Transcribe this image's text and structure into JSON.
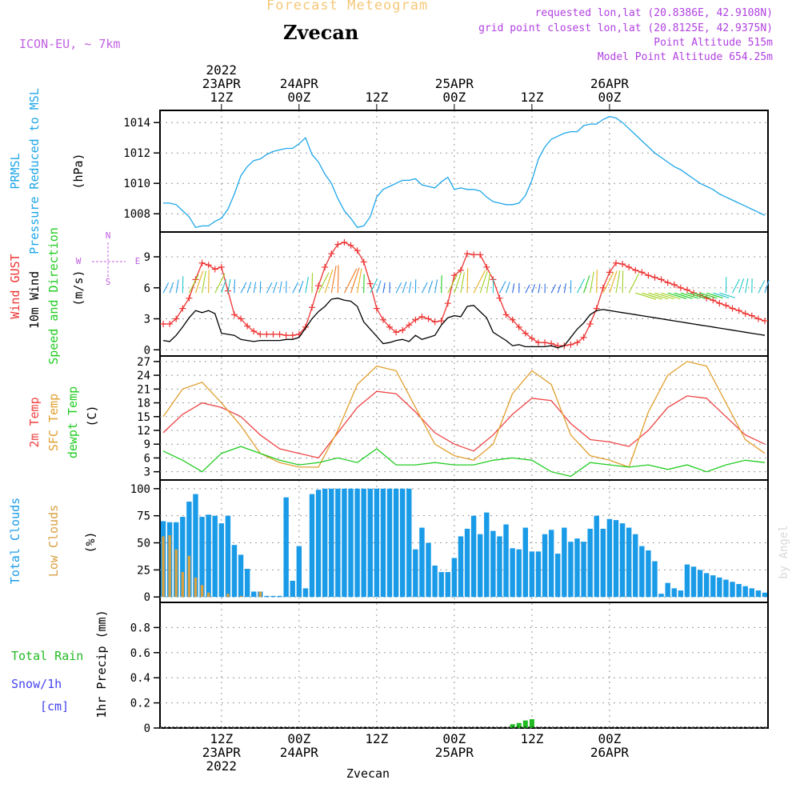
{
  "header": {
    "title": "Forecast Meteogram",
    "location": "Zvecan",
    "model": "ICON-EU, ~ 7km",
    "requested": "requested lon,lat (20.8386E, 42.9108N)",
    "gridpoint": "grid point closest lon,lat (20.8125E, 42.9375N)",
    "point_alt": "Point Altitude 515m",
    "model_alt": "Model Point Altitude 654.25m",
    "credit": "by Angel",
    "footer": "Zvecan"
  },
  "time_axis": {
    "top": [
      {
        "lines": [
          "2022",
          "23APR",
          "12Z"
        ],
        "hour": 12
      },
      {
        "lines": [
          "24APR",
          "00Z"
        ],
        "hour": 24
      },
      {
        "lines": [
          "12Z"
        ],
        "hour": 36
      },
      {
        "lines": [
          "25APR",
          "00Z"
        ],
        "hour": 48
      },
      {
        "lines": [
          "12Z"
        ],
        "hour": 60
      },
      {
        "lines": [
          "26APR",
          "00Z"
        ],
        "hour": 72
      }
    ],
    "bottom": [
      {
        "lines": [
          "12Z",
          "23APR",
          "2022"
        ],
        "hour": 12
      },
      {
        "lines": [
          "00Z",
          "24APR"
        ],
        "hour": 24
      },
      {
        "lines": [
          "12Z"
        ],
        "hour": 36
      },
      {
        "lines": [
          "00Z",
          "25APR"
        ],
        "hour": 48
      },
      {
        "lines": [
          "12Z"
        ],
        "hour": 60
      },
      {
        "lines": [
          "00Z",
          "26APR"
        ],
        "hour": 72
      }
    ]
  },
  "panel_labels": {
    "pressure": [
      "PRMSL",
      "Pressure Reduced to MSL",
      "(hPa)"
    ],
    "wind": [
      "Wind GUST",
      "10m Wind",
      "Speed and Direction",
      "(m/s)"
    ],
    "compass": {
      "n": "N",
      "s": "S",
      "w": "W",
      "e": "E"
    },
    "temp": [
      "2m Temp",
      "SFC Temp",
      "dewpt Temp",
      "(C)"
    ],
    "clouds": [
      "Total Clouds",
      "Low Clouds",
      "(%)"
    ],
    "precip": [
      "Total Rain",
      "Snow/1h",
      "[cm]",
      "1hr Precip (mm)"
    ]
  },
  "colors": {
    "pressure": "#1ea6e8",
    "gust": "#ee3333",
    "wind": "#000000",
    "temp2m": "#ee4444",
    "sfc": "#e0a030",
    "dew": "#22cc22",
    "total_cloud": "#1a9be8",
    "low_cloud": "#d8a040",
    "rain": "#22bb22",
    "snow": "#4444ee",
    "title": "#f5c878",
    "meta": "#b040e0"
  },
  "chart_data": [
    {
      "type": "line",
      "name": "pressure",
      "ylim": [
        1006.8,
        1014.8
      ],
      "yticks": [
        1008,
        1010,
        1012,
        1014
      ],
      "x": [
        3,
        4,
        5,
        6,
        7,
        8,
        9,
        10,
        11,
        12,
        13,
        14,
        15,
        16,
        17,
        18,
        19,
        20,
        21,
        22,
        23,
        24,
        25,
        26,
        27,
        28,
        29,
        30,
        31,
        32,
        33,
        34,
        35,
        36,
        37,
        38,
        39,
        40,
        41,
        42,
        43,
        44,
        45,
        46,
        47,
        48,
        49,
        50,
        51,
        52,
        53,
        54,
        55,
        56,
        57,
        58,
        59,
        60,
        61,
        62,
        63,
        64,
        65,
        66,
        67,
        68,
        69,
        70,
        71,
        72,
        73,
        74,
        75,
        76,
        77,
        78,
        79,
        80,
        81,
        82,
        83,
        84,
        85,
        86,
        87,
        88,
        89,
        90,
        91,
        92,
        93,
        94,
        95,
        96
      ],
      "series": [
        {
          "name": "PRMSL",
          "values": [
            1008.7,
            1008.7,
            1008.6,
            1008.2,
            1007.8,
            1007.1,
            1007.2,
            1007.2,
            1007.5,
            1007.7,
            1008.3,
            1009.3,
            1010.5,
            1011.1,
            1011.5,
            1011.6,
            1011.9,
            1012.1,
            1012.2,
            1012.3,
            1012.3,
            1012.6,
            1013.0,
            1011.9,
            1011.4,
            1010.6,
            1010.0,
            1009.0,
            1008.2,
            1007.7,
            1007.1,
            1007.2,
            1007.8,
            1009.1,
            1009.6,
            1009.8,
            1010.0,
            1010.2,
            1010.2,
            1010.3,
            1009.9,
            1009.8,
            1009.7,
            1010.1,
            1010.4,
            1009.6,
            1009.7,
            1009.6,
            1009.6,
            1009.5,
            1009.1,
            1008.8,
            1008.7,
            1008.6,
            1008.6,
            1008.7,
            1009.2,
            1010.2,
            1011.6,
            1012.4,
            1012.9,
            1013.1,
            1013.3,
            1013.4,
            1013.4,
            1013.8,
            1013.9,
            1013.9,
            1014.2,
            1014.4,
            1014.3,
            1014.0,
            1013.6,
            1013.2,
            1012.8,
            1012.4,
            1012.0,
            1011.7,
            1011.4,
            1011.1,
            1010.9,
            1010.6,
            1010.3,
            1010.0,
            1009.8,
            1009.6,
            1009.3,
            1009.1,
            1008.9,
            1008.7,
            1008.5,
            1008.3,
            1008.1,
            1007.9
          ]
        }
      ]
    },
    {
      "type": "line",
      "name": "wind",
      "ylim": [
        -0.6,
        11.4
      ],
      "yticks": [
        0,
        3,
        6,
        9
      ],
      "x": [
        3,
        4,
        5,
        6,
        7,
        8,
        9,
        10,
        11,
        12,
        13,
        14,
        15,
        16,
        17,
        18,
        19,
        20,
        21,
        22,
        23,
        24,
        25,
        26,
        27,
        28,
        29,
        30,
        31,
        32,
        33,
        34,
        35,
        36,
        37,
        38,
        39,
        40,
        41,
        42,
        43,
        44,
        45,
        46,
        47,
        48,
        49,
        50,
        51,
        52,
        53,
        54,
        55,
        56,
        57,
        58,
        59,
        60,
        61,
        62,
        63,
        64,
        65,
        66,
        67,
        68,
        69,
        70,
        71,
        72,
        73,
        74,
        75,
        76,
        77,
        78,
        79,
        80,
        81,
        82,
        83,
        84,
        85,
        86,
        87,
        88,
        89,
        90,
        91,
        92,
        93,
        94,
        95,
        96
      ],
      "series": [
        {
          "name": "Wind GUST",
          "values": [
            2.5,
            2.5,
            3.0,
            4.0,
            5.0,
            6.8,
            8.4,
            8.2,
            7.8,
            8.0,
            5.7,
            3.4,
            3.0,
            2.3,
            1.8,
            1.5,
            1.5,
            1.5,
            1.5,
            1.4,
            1.4,
            1.5,
            2.2,
            4.1,
            6.2,
            8.0,
            9.3,
            10.2,
            10.4,
            10.1,
            9.6,
            8.5,
            6.4,
            4.0,
            2.9,
            2.2,
            1.7,
            1.9,
            2.4,
            2.9,
            3.2,
            3.0,
            2.7,
            2.8,
            4.5,
            7.2,
            7.7,
            9.3,
            9.2,
            9.2,
            8.0,
            6.8,
            5.0,
            3.4,
            2.9,
            2.2,
            1.6,
            1.1,
            0.7,
            0.7,
            0.6,
            0.4,
            0.4,
            0.5,
            0.7,
            1.2,
            2.5,
            4.0,
            6.0,
            7.5,
            8.4,
            8.3,
            8.0,
            7.7,
            7.5,
            7.2,
            7.0,
            6.8,
            6.5,
            6.3,
            6.0,
            5.8,
            5.5,
            5.3,
            5.0,
            4.8,
            4.5,
            4.3,
            4.0,
            3.8,
            3.5,
            3.3,
            3.0,
            2.8
          ]
        },
        {
          "name": "10m Wind",
          "values": [
            0.9,
            0.8,
            1.4,
            2.2,
            3.1,
            3.8,
            3.6,
            3.8,
            3.5,
            1.6,
            1.5,
            1.4,
            1.0,
            0.9,
            0.8,
            0.9,
            0.9,
            0.9,
            0.9,
            1.0,
            1.0,
            1.2,
            2.1,
            3.0,
            3.7,
            4.2,
            4.9,
            5.0,
            4.8,
            4.7,
            4.2,
            2.7,
            2.0,
            1.3,
            0.6,
            0.7,
            0.9,
            1.0,
            0.8,
            1.4,
            1.0,
            1.2,
            1.4,
            2.4,
            3.1,
            3.3,
            3.2,
            4.2,
            4.3,
            3.7,
            3.1,
            1.7,
            1.3,
            0.9,
            0.4,
            0.5,
            0.3,
            0.3,
            0.3,
            0.3,
            0.4,
            0.2,
            0.4,
            1.2,
            2.0,
            2.6,
            3.4,
            3.8,
            3.9,
            3.8,
            3.7,
            3.6,
            3.5,
            3.4,
            3.3,
            3.2,
            3.1,
            3.0,
            2.9,
            2.8,
            2.7,
            2.6,
            2.5,
            2.4,
            2.3,
            2.2,
            2.1,
            2.0,
            1.9,
            1.8,
            1.7,
            1.6,
            1.5,
            1.4
          ]
        }
      ]
    },
    {
      "type": "line",
      "name": "temperature",
      "ylim": [
        1.2,
        28.2
      ],
      "yticks": [
        3,
        6,
        9,
        12,
        15,
        18,
        21,
        24,
        27
      ],
      "x": [
        3,
        6,
        9,
        12,
        15,
        18,
        21,
        24,
        27,
        30,
        33,
        36,
        39,
        42,
        45,
        48,
        51,
        54,
        57,
        60,
        63,
        66,
        69,
        72,
        75,
        78,
        81,
        84,
        87,
        90,
        93,
        96
      ],
      "series": [
        {
          "name": "2m Temp",
          "values": [
            11.5,
            15.5,
            18.0,
            17.0,
            15.0,
            11.0,
            8.0,
            7.0,
            6.0,
            11.5,
            17.0,
            20.5,
            20.0,
            16.0,
            11.5,
            9.0,
            7.5,
            11.0,
            15.5,
            19.0,
            18.5,
            13.5,
            10.0,
            9.5,
            8.5,
            12.0,
            17.0,
            19.5,
            19.0,
            15.0,
            11.0,
            9.0
          ]
        },
        {
          "name": "SFC Temp",
          "values": [
            15.0,
            21.0,
            22.5,
            18.0,
            13.0,
            7.0,
            5.0,
            4.0,
            4.0,
            12.0,
            22.0,
            26.0,
            25.0,
            17.0,
            9.0,
            6.5,
            5.5,
            9.0,
            20.0,
            25.0,
            22.0,
            11.0,
            6.5,
            5.5,
            4.0,
            16.0,
            24.0,
            27.0,
            26.0,
            18.0,
            10.0,
            7.0
          ]
        },
        {
          "name": "dewpt Temp",
          "values": [
            7.5,
            5.5,
            3.0,
            7.0,
            8.5,
            7.0,
            5.5,
            4.5,
            5.0,
            6.0,
            5.0,
            8.0,
            4.5,
            4.5,
            5.0,
            4.5,
            4.5,
            5.5,
            6.0,
            5.5,
            3.0,
            2.0,
            5.0,
            4.5,
            4.0,
            4.5,
            3.5,
            4.5,
            3.0,
            4.5,
            5.5,
            5.0
          ]
        }
      ]
    },
    {
      "type": "bar",
      "name": "clouds",
      "ylim": [
        -5,
        108
      ],
      "yticks": [
        0,
        25,
        50,
        75,
        100
      ],
      "x": [
        3,
        4,
        5,
        6,
        7,
        8,
        9,
        10,
        11,
        12,
        13,
        14,
        15,
        16,
        17,
        18,
        19,
        20,
        21,
        22,
        23,
        24,
        25,
        26,
        27,
        28,
        29,
        30,
        31,
        32,
        33,
        34,
        35,
        36,
        37,
        38,
        39,
        40,
        41,
        42,
        43,
        44,
        45,
        46,
        47,
        48,
        49,
        50,
        51,
        52,
        53,
        54,
        55,
        56,
        57,
        58,
        59,
        60,
        61,
        62,
        63,
        64,
        65,
        66,
        67,
        68,
        69,
        70,
        71,
        72,
        73,
        74,
        75,
        76,
        77,
        78,
        79,
        80,
        81,
        82,
        83,
        84,
        85,
        86,
        87,
        88,
        89,
        90,
        91,
        92,
        93,
        94,
        95,
        96
      ],
      "series": [
        {
          "name": "Total Clouds",
          "values": [
            70,
            69,
            69,
            74,
            88,
            95,
            74,
            76,
            75,
            68,
            75,
            48,
            39,
            26,
            5,
            5,
            1,
            1,
            1,
            92,
            15,
            47,
            8,
            95,
            99,
            100,
            100,
            100,
            100,
            100,
            100,
            100,
            100,
            100,
            100,
            100,
            100,
            100,
            100,
            44,
            64,
            50,
            29,
            23,
            23,
            36,
            56,
            63,
            75,
            58,
            78,
            61,
            56,
            67,
            45,
            44,
            64,
            42,
            42,
            58,
            62,
            40,
            64,
            51,
            54,
            51,
            63,
            75,
            63,
            72,
            71,
            68,
            64,
            58,
            47,
            43,
            33,
            3,
            13,
            8,
            6,
            30,
            28,
            25,
            22,
            20,
            18,
            16,
            14,
            12,
            10,
            8,
            6,
            4
          ]
        },
        {
          "name": "Low Clouds",
          "values": [
            56,
            57,
            44,
            23,
            38,
            18,
            11,
            4,
            0,
            0,
            3,
            0,
            1,
            0,
            0,
            5,
            0,
            0,
            0,
            0,
            0,
            0,
            0,
            0,
            0,
            0,
            0,
            0,
            0,
            0,
            0,
            0,
            0,
            0,
            0,
            0,
            0,
            0,
            0,
            0,
            0,
            0,
            0,
            0,
            0,
            0,
            0,
            0,
            0,
            0,
            0,
            0,
            0,
            0,
            0,
            0,
            0,
            0,
            0,
            0,
            0,
            0,
            0,
            0,
            0,
            0,
            0,
            0,
            0,
            0,
            0,
            0,
            0,
            0,
            0,
            0,
            0,
            0,
            0,
            0,
            0,
            0,
            0,
            0,
            0,
            0,
            0,
            0,
            0,
            0,
            0,
            0,
            0,
            0
          ]
        }
      ]
    },
    {
      "type": "bar",
      "name": "precip",
      "ylim": [
        0,
        1.0
      ],
      "yticks": [
        0,
        0.2,
        0.4,
        0.6,
        0.8
      ],
      "x": [
        57,
        58,
        59,
        60
      ],
      "series": [
        {
          "name": "Total Rain",
          "values": [
            0.03,
            0.04,
            0.06,
            0.07
          ]
        }
      ]
    }
  ]
}
